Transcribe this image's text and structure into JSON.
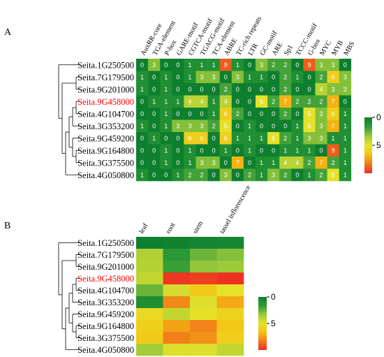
{
  "colors": {
    "highlight_label": "#ff0000",
    "normal_label": "#000000",
    "cell_text": "#ffffff",
    "scale": [
      "#0e7f2e",
      "#2e9a38",
      "#9bc93a",
      "#e6e22a",
      "#f5c012",
      "#f07b1a",
      "#ee2d22"
    ]
  },
  "chart_data": [
    {
      "panel": "A",
      "type": "heatmap",
      "highlighted_gene": "Seita.9G458000",
      "genes": [
        "Seita.1G250500",
        "Seita.7G179500",
        "Seita.9G201000",
        "Seita.9G458000",
        "Seita.4G104700",
        "Seita.3G353200",
        "Seita.9G459200",
        "Seita.9G164800",
        "Seita.3G375500",
        "Seita.4G050800"
      ],
      "columns": [
        "AuxRR-core",
        "TGA-element",
        "P-box",
        "GARE-motif",
        "CGTCA-motif",
        "TGACG-motif",
        "TCA-element",
        "ABRE",
        "TC-rich repeats",
        "LTR",
        "GC-motif",
        "ARE",
        "Sp1",
        "TCCC-motif",
        "G-box",
        "MYC",
        "MYB",
        "MBS"
      ],
      "values": [
        [
          0,
          3,
          0,
          0,
          1,
          1,
          1,
          9,
          1,
          0,
          3,
          2,
          2,
          0,
          9,
          3,
          3,
          0
        ],
        [
          1,
          0,
          1,
          0,
          1,
          3,
          3,
          0,
          3,
          1,
          1,
          0,
          2,
          1,
          0,
          2,
          6,
          3
        ],
        [
          1,
          0,
          1,
          0,
          0,
          0,
          0,
          2,
          0,
          0,
          0,
          0,
          2,
          0,
          0,
          4,
          3,
          3
        ],
        [
          0,
          1,
          1,
          1,
          4,
          4,
          1,
          4,
          0,
          0,
          5,
          2,
          7,
          2,
          2,
          2,
          7,
          0
        ],
        [
          0,
          0,
          1,
          0,
          0,
          0,
          1,
          6,
          2,
          0,
          0,
          0,
          2,
          0,
          5,
          3,
          6,
          1
        ],
        [
          1,
          0,
          1,
          3,
          3,
          3,
          2,
          5,
          0,
          1,
          0,
          0,
          0,
          1,
          5,
          3,
          7,
          1
        ],
        [
          0,
          1,
          0,
          0,
          6,
          6,
          0,
          6,
          1,
          1,
          1,
          5,
          2,
          1,
          3,
          3,
          1,
          1
        ],
        [
          0,
          0,
          1,
          0,
          1,
          0,
          0,
          1,
          0,
          1,
          0,
          0,
          1,
          1,
          1,
          0,
          9,
          1
        ],
        [
          0,
          0,
          1,
          0,
          1,
          3,
          3,
          0,
          7,
          0,
          1,
          1,
          4,
          4,
          2,
          7,
          2,
          1
        ],
        [
          1,
          0,
          0,
          1,
          2,
          2,
          0,
          3,
          0,
          2,
          1,
          3,
          2,
          0,
          1,
          2,
          5,
          1
        ]
      ],
      "legend": {
        "ticks": [
          "0",
          "5"
        ],
        "range": [
          0,
          10
        ]
      }
    },
    {
      "panel": "B",
      "type": "heatmap",
      "highlighted_gene": "Seita.9G458000",
      "genes": [
        "Seita.1G250500",
        "Seita.7G179500",
        "Seita.9G201000",
        "Seita.9G458000",
        "Seita.4G104700",
        "Seita.3G353200",
        "Seita.9G459200",
        "Seita.9G164800",
        "Seita.3G375500",
        "Seita.4G050800"
      ],
      "columns": [
        "leaf",
        "root",
        "stem",
        "tassel inflorescence"
      ],
      "values": [
        [
          0.0,
          0.2,
          0.3,
          0.5
        ],
        [
          3.8,
          1.5,
          2.6,
          3.0
        ],
        [
          3.9,
          1.8,
          3.2,
          3.4
        ],
        [
          4.2,
          9.8,
          9.6,
          9.9
        ],
        [
          2.6,
          4.6,
          6.2,
          5.0
        ],
        [
          0.9,
          8.0,
          4.8,
          7.2
        ],
        [
          5.5,
          4.2,
          5.0,
          5.8
        ],
        [
          5.9,
          7.4,
          8.1,
          6.3
        ],
        [
          6.2,
          8.2,
          7.8,
          6.0
        ],
        [
          3.5,
          4.8,
          4.8,
          4.2
        ]
      ],
      "legend": {
        "ticks": [
          "0",
          "5"
        ],
        "range": [
          0,
          10
        ]
      }
    }
  ]
}
